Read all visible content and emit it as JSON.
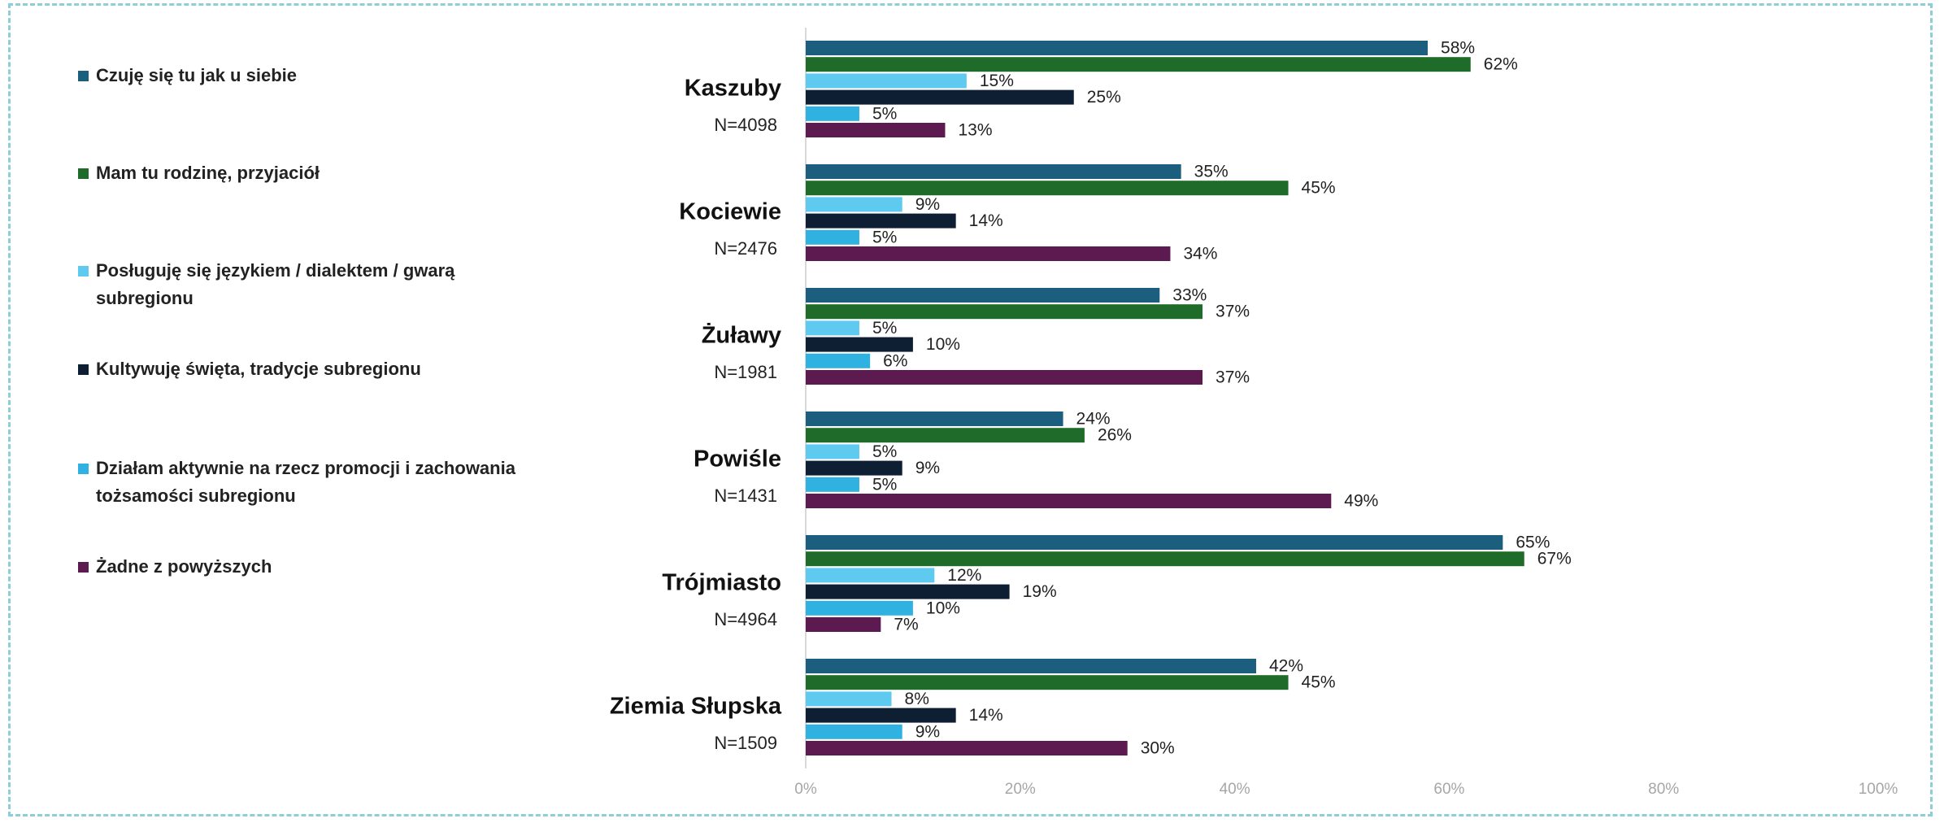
{
  "chart_data": {
    "type": "hbar",
    "categories": [
      "Kaszuby",
      "Kociewie",
      "Żuławy",
      "Powiśle",
      "Trójmiasto",
      "Ziemia Słupska"
    ],
    "category_notes": [
      "N=4098",
      "N=2476",
      "N=1981",
      "N=1431",
      "N=4964",
      "N=1509"
    ],
    "series": [
      {
        "name": "Czuję się tu jak u siebie",
        "color": "#1b5e7e",
        "values": [
          58,
          35,
          33,
          24,
          65,
          42
        ],
        "value_labels": [
          "58%",
          "35%",
          "33%",
          "24%",
          "65%",
          "42%"
        ]
      },
      {
        "name": "Mam tu rodzinę, przyjaciół",
        "color": "#1e6b2a",
        "values": [
          62,
          45,
          37,
          26,
          67,
          45
        ],
        "value_labels": [
          "62%",
          "45%",
          "37%",
          "26%",
          "67%",
          "45%"
        ]
      },
      {
        "name": "Posługuję się językiem / dialektem / gwarą subregionu",
        "color": "#5fcaf0",
        "values": [
          15,
          9,
          5,
          5,
          12,
          8
        ],
        "value_labels": [
          "15%",
          "9%",
          "5%",
          "5%",
          "12%",
          "8%"
        ]
      },
      {
        "name": "Kultywuję święta, tradycje subregionu",
        "color": "#0e1f33",
        "values": [
          25,
          14,
          10,
          9,
          19,
          14
        ],
        "value_labels": [
          "25%",
          "14%",
          "10%",
          "9%",
          "19%",
          "14%"
        ]
      },
      {
        "name": "Działam aktywnie na rzecz promocji i zachowania tożsamości subregionu",
        "color": "#2fb2e2",
        "values": [
          5,
          5,
          6,
          5,
          10,
          9
        ],
        "value_labels": [
          "5%",
          "5%",
          "6%",
          "5%",
          "10%",
          "9%"
        ]
      },
      {
        "name": "Żadne z powyższych",
        "color": "#5c1a50",
        "values": [
          13,
          34,
          37,
          49,
          7,
          30
        ],
        "value_labels": [
          "13%",
          "34%",
          "37%",
          "49%",
          "7%",
          "30%"
        ]
      }
    ],
    "xlim": [
      0,
      100
    ],
    "xticks": [
      {
        "value": 0,
        "label": "0%"
      },
      {
        "value": 20,
        "label": "20%"
      },
      {
        "value": 40,
        "label": "40%"
      },
      {
        "value": 60,
        "label": "60%"
      },
      {
        "value": 80,
        "label": "80%"
      },
      {
        "value": 100,
        "label": "100%"
      }
    ],
    "grid": false,
    "legend": "left"
  }
}
